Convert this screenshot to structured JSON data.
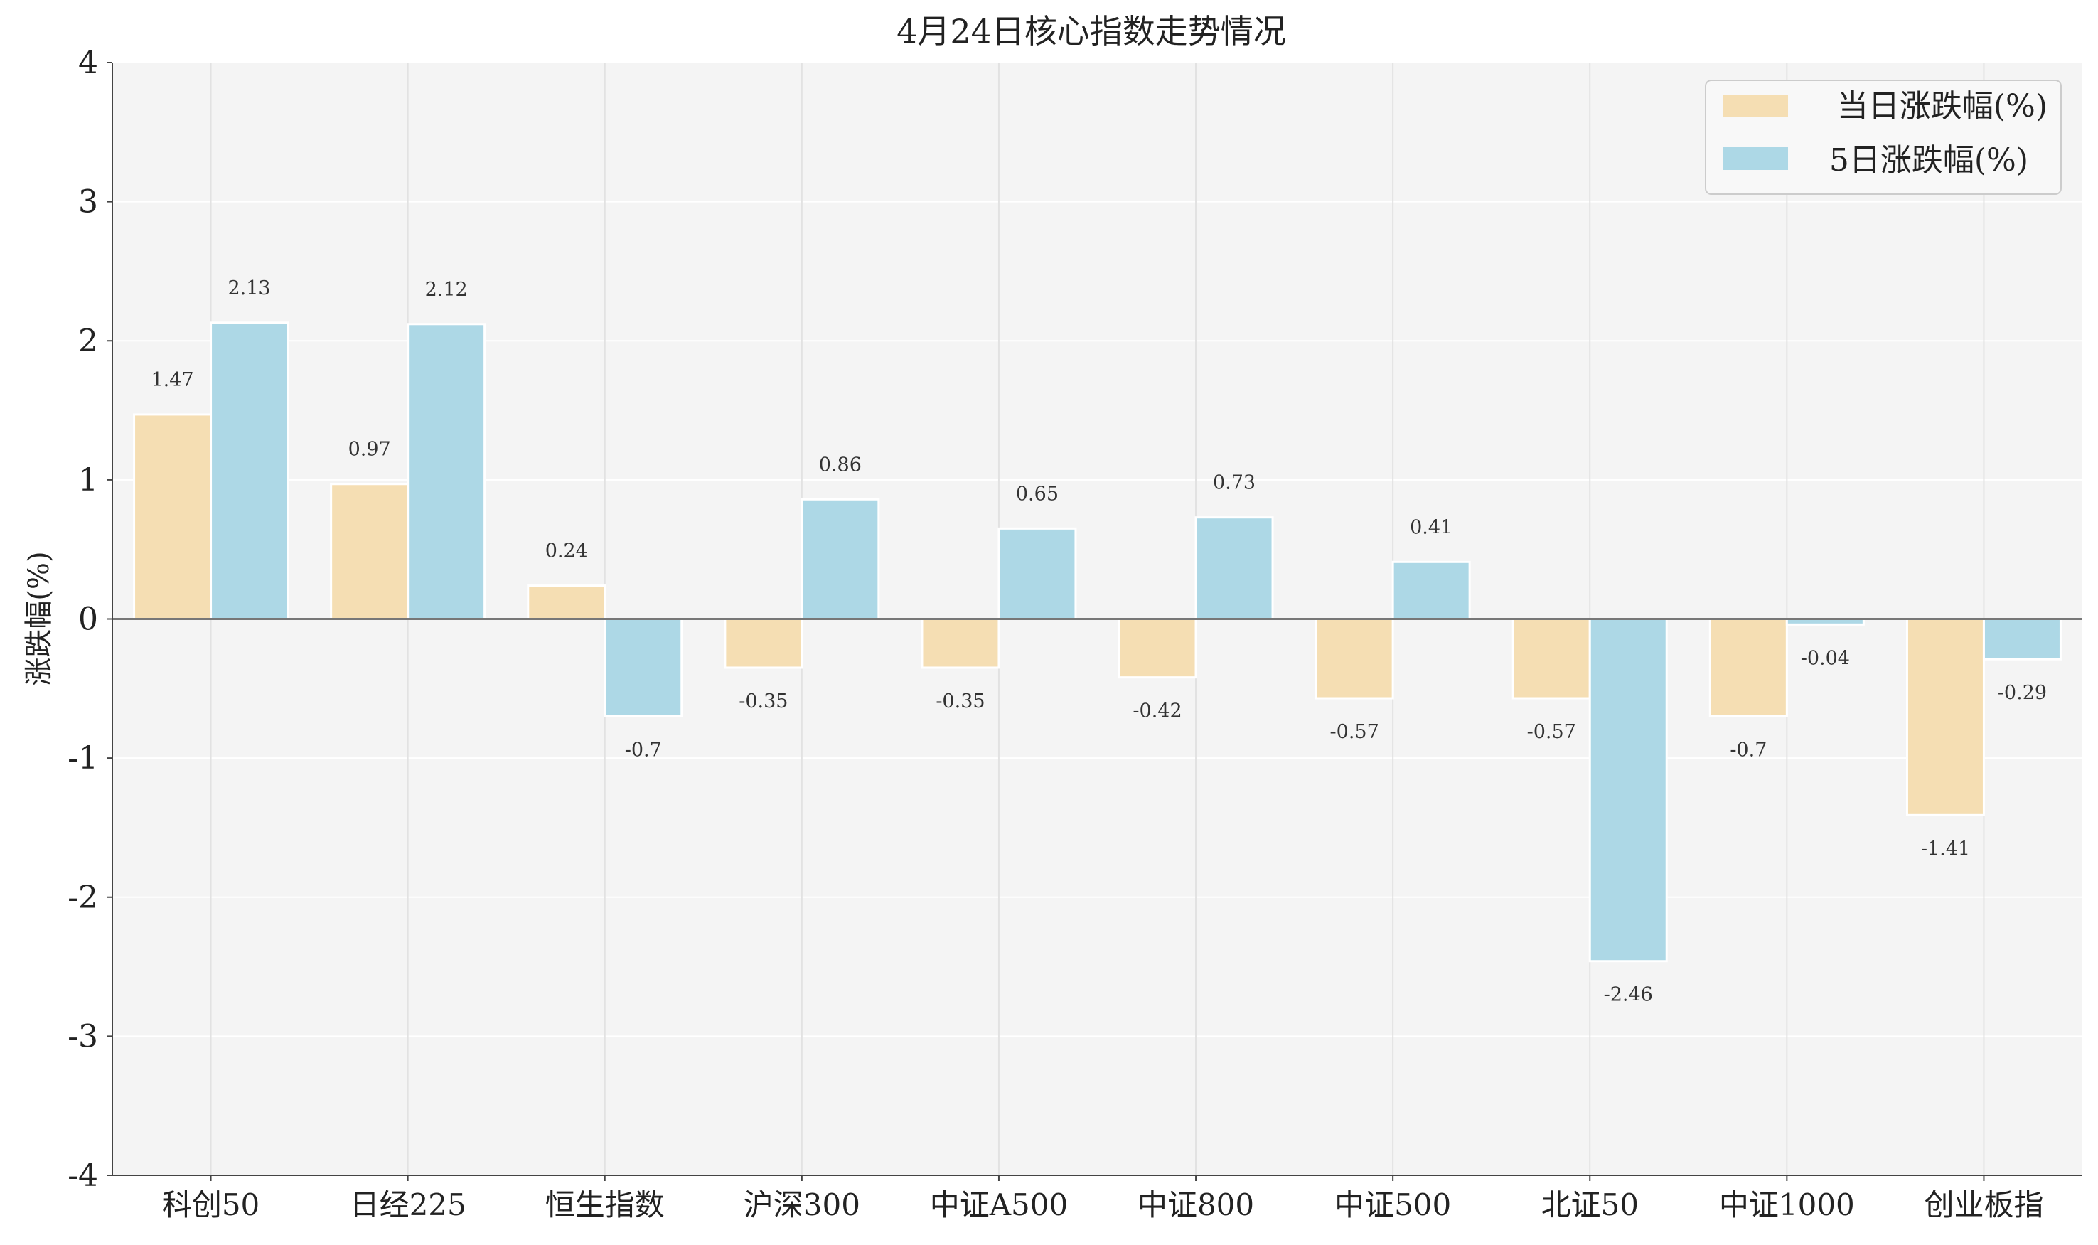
{
  "chart_data": {
    "type": "bar",
    "title": "4月24日核心指数走势情况",
    "xlabel": "",
    "ylabel": "涨跌幅(%)",
    "ylim": [
      -4,
      4
    ],
    "yticks": [
      4,
      3,
      2,
      1,
      0,
      -1,
      -2,
      -3,
      -4
    ],
    "grid": true,
    "legend_position": "top-right",
    "categories": [
      "科创50",
      "日经225",
      "恒生指数",
      "沪深300",
      "中证A500",
      "中证800",
      "中证500",
      "北证50",
      "中证1000",
      "创业板指"
    ],
    "series": [
      {
        "name": "当日涨跌幅(%)",
        "color": "#f5deb3",
        "values": [
          1.47,
          0.97,
          0.24,
          -0.35,
          -0.35,
          -0.42,
          -0.57,
          -0.57,
          -0.7,
          -1.41
        ],
        "labels": [
          "1.47",
          "0.97",
          "0.24",
          "-0.35",
          "-0.35",
          "-0.42",
          "-0.57",
          "-0.57",
          "-0.7",
          "-1.41"
        ]
      },
      {
        "name": "5日涨跌幅(%)",
        "color": "#add8e6",
        "values": [
          2.13,
          2.12,
          -0.7,
          0.86,
          0.65,
          0.73,
          0.41,
          -2.46,
          -0.04,
          -0.29
        ],
        "labels": [
          "2.13",
          "2.12",
          "-0.7",
          "0.86",
          "0.65",
          "0.73",
          "0.41",
          "-2.46",
          "-0.04",
          "-0.29"
        ]
      }
    ]
  }
}
